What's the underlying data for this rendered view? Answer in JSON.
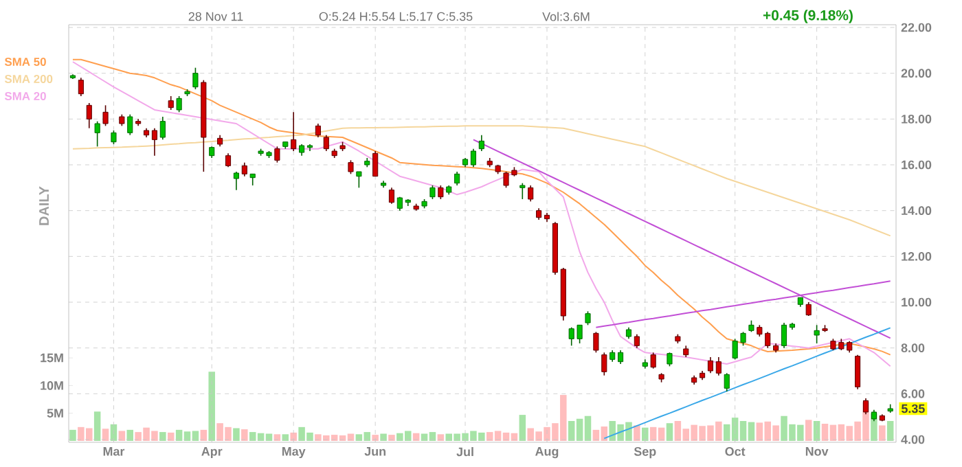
{
  "chart_data": {
    "type": "candlestick",
    "categories": [
      null,
      null,
      null,
      null,
      null,
      "Mar",
      null,
      null,
      null,
      null,
      null,
      null,
      null,
      null,
      null,
      null,
      null,
      "Apr",
      null,
      null,
      null,
      null,
      null,
      null,
      null,
      null,
      null,
      "May",
      null,
      null,
      null,
      null,
      null,
      null,
      null,
      null,
      null,
      "Jun",
      null,
      null,
      null,
      null,
      null,
      null,
      null,
      null,
      null,
      null,
      "Jul",
      null,
      null,
      null,
      null,
      null,
      null,
      null,
      null,
      null,
      "Aug",
      null,
      null,
      null,
      null,
      null,
      null,
      null,
      null,
      null,
      null,
      null,
      "Sep",
      null,
      null,
      null,
      null,
      null,
      null,
      null,
      null,
      null,
      null,
      "Oct",
      null,
      null,
      null,
      null,
      null,
      null,
      null,
      null,
      null,
      "Nov",
      null,
      null,
      null,
      null,
      null,
      null,
      null,
      null,
      null
    ],
    "ohlc": [
      [
        19.8,
        19.95,
        19.75,
        19.9
      ],
      [
        19.7,
        19.8,
        19.0,
        19.1
      ],
      [
        18.6,
        18.7,
        17.6,
        18.0
      ],
      [
        17.4,
        17.9,
        16.8,
        17.8
      ],
      [
        18.3,
        18.6,
        17.7,
        17.8
      ],
      [
        17.0,
        17.5,
        16.9,
        17.4
      ],
      [
        18.1,
        18.2,
        17.7,
        17.8
      ],
      [
        17.4,
        18.2,
        17.3,
        18.1
      ],
      [
        17.9,
        18.0,
        17.7,
        17.8
      ],
      [
        17.5,
        17.6,
        17.2,
        17.3
      ],
      [
        17.5,
        17.6,
        16.4,
        17.1
      ],
      [
        17.2,
        18.1,
        17.1,
        17.9
      ],
      [
        18.8,
        19.0,
        18.4,
        18.5
      ],
      [
        18.4,
        19.0,
        18.3,
        18.9
      ],
      [
        19.1,
        19.3,
        19.0,
        19.2
      ],
      [
        19.4,
        20.24,
        19.3,
        20.0
      ],
      [
        19.6,
        19.7,
        15.7,
        17.2
      ],
      [
        16.4,
        16.8,
        16.3,
        16.76
      ],
      [
        17.16,
        17.3,
        16.8,
        16.9
      ],
      [
        16.4,
        16.5,
        15.9,
        15.96
      ],
      [
        15.4,
        15.7,
        14.9,
        15.64
      ],
      [
        15.96,
        16.1,
        15.5,
        15.6
      ],
      [
        15.44,
        15.6,
        15.1,
        15.6
      ],
      [
        16.5,
        16.7,
        16.4,
        16.6
      ],
      [
        16.4,
        16.6,
        16.3,
        16.54
      ],
      [
        16.7,
        16.8,
        16.1,
        16.2
      ],
      [
        16.8,
        17.0,
        16.7,
        17.0
      ],
      [
        17.1,
        18.3,
        16.6,
        16.7
      ],
      [
        16.54,
        16.9,
        16.4,
        16.84
      ],
      [
        16.76,
        16.9,
        16.6,
        16.84
      ],
      [
        17.7,
        17.8,
        17.2,
        17.3
      ],
      [
        17.2,
        17.3,
        16.6,
        16.7
      ],
      [
        16.6,
        16.7,
        16.3,
        16.4
      ],
      [
        16.84,
        17.0,
        16.6,
        16.7
      ],
      [
        16.1,
        16.2,
        15.6,
        15.7
      ],
      [
        15.5,
        15.7,
        15.0,
        15.7
      ],
      [
        16.0,
        16.3,
        15.9,
        16.16
      ],
      [
        16.5,
        16.6,
        15.5,
        15.5
      ],
      [
        15.1,
        15.3,
        15.0,
        15.2
      ],
      [
        14.9,
        15.0,
        14.3,
        14.36
      ],
      [
        14.1,
        14.6,
        14.0,
        14.56
      ],
      [
        14.36,
        14.5,
        14.2,
        14.46
      ],
      [
        14.2,
        14.3,
        14.0,
        14.06
      ],
      [
        14.2,
        14.5,
        14.1,
        14.4
      ],
      [
        14.6,
        15.1,
        14.5,
        15.0
      ],
      [
        15.0,
        15.1,
        14.5,
        14.6
      ],
      [
        14.8,
        15.1,
        14.7,
        15.04
      ],
      [
        15.2,
        15.7,
        15.1,
        15.6
      ],
      [
        16.0,
        16.3,
        15.9,
        16.24
      ],
      [
        16.0,
        16.7,
        15.9,
        16.6
      ],
      [
        16.7,
        17.3,
        16.6,
        17.04
      ],
      [
        16.16,
        16.3,
        15.9,
        16.0
      ],
      [
        15.96,
        16.0,
        15.6,
        15.7
      ],
      [
        15.64,
        15.7,
        15.0,
        15.1
      ],
      [
        15.76,
        15.9,
        15.5,
        15.56
      ],
      [
        15.0,
        15.2,
        14.5,
        15.1
      ],
      [
        15.0,
        15.1,
        14.4,
        14.5
      ],
      [
        14.0,
        14.1,
        13.6,
        13.7
      ],
      [
        13.8,
        13.9,
        13.5,
        13.64
      ],
      [
        13.44,
        13.5,
        11.2,
        11.3
      ],
      [
        11.44,
        11.5,
        9.2,
        9.4
      ],
      [
        8.4,
        8.9,
        8.1,
        8.84
      ],
      [
        8.4,
        9.0,
        8.2,
        9.0
      ],
      [
        9.1,
        9.6,
        9.0,
        9.5
      ],
      [
        8.64,
        8.7,
        7.8,
        7.9
      ],
      [
        7.7,
        7.8,
        6.8,
        6.96
      ],
      [
        7.5,
        7.9,
        7.4,
        7.8
      ],
      [
        7.4,
        7.9,
        7.3,
        7.8
      ],
      [
        8.5,
        8.9,
        8.4,
        8.8
      ],
      [
        8.5,
        8.6,
        8.0,
        8.1
      ],
      [
        7.2,
        7.5,
        7.1,
        7.36
      ],
      [
        7.7,
        7.8,
        7.1,
        7.16
      ],
      [
        6.84,
        6.9,
        6.5,
        6.64
      ],
      [
        7.3,
        7.8,
        7.2,
        7.76
      ],
      [
        8.5,
        8.6,
        8.2,
        8.3
      ],
      [
        7.96,
        8.1,
        7.6,
        7.7
      ],
      [
        6.7,
        6.8,
        6.4,
        6.5
      ],
      [
        6.9,
        7.0,
        6.6,
        6.7
      ],
      [
        7.44,
        7.6,
        6.9,
        7.0
      ],
      [
        7.4,
        7.6,
        6.8,
        6.9
      ],
      [
        6.24,
        6.9,
        6.1,
        6.84
      ],
      [
        7.56,
        8.4,
        7.5,
        8.3
      ],
      [
        8.24,
        8.7,
        8.1,
        8.64
      ],
      [
        8.76,
        9.2,
        8.7,
        9.0
      ],
      [
        8.9,
        9.0,
        8.5,
        8.6
      ],
      [
        8.64,
        8.7,
        8.0,
        8.1
      ],
      [
        8.1,
        8.2,
        7.8,
        7.9
      ],
      [
        8.1,
        9.1,
        8.0,
        9.0
      ],
      [
        8.9,
        9.1,
        8.8,
        9.04
      ],
      [
        9.9,
        10.2,
        9.8,
        10.2
      ],
      [
        9.9,
        10.0,
        9.4,
        9.44
      ],
      [
        8.56,
        9.0,
        8.2,
        8.76
      ],
      [
        8.84,
        9.0,
        8.7,
        8.76
      ],
      [
        8.3,
        8.4,
        7.9,
        7.96
      ],
      [
        8.24,
        8.4,
        7.9,
        7.96
      ],
      [
        8.24,
        8.3,
        7.8,
        7.9
      ],
      [
        7.64,
        7.7,
        6.2,
        6.3
      ],
      [
        5.7,
        5.8,
        5.1,
        5.2
      ],
      [
        4.9,
        5.3,
        4.8,
        5.2
      ],
      [
        5.04,
        5.1,
        4.8,
        4.84
      ],
      [
        5.24,
        5.54,
        5.17,
        5.35
      ]
    ],
    "series": [
      {
        "name": "SMA 50",
        "type": "line",
        "color": "#ff9f4f",
        "values": [
          20.6,
          20.6,
          20.5,
          20.4,
          20.3,
          20.2,
          20.1,
          20.0,
          19.95,
          19.9,
          19.8,
          19.65,
          19.5,
          19.4,
          19.25,
          19.1,
          18.95,
          18.8,
          18.6,
          18.45,
          18.3,
          18.15,
          18.0,
          17.85,
          17.65,
          17.5,
          17.45,
          17.4,
          17.35,
          17.3,
          17.26,
          17.24,
          17.22,
          17.2,
          17.05,
          16.9,
          16.75,
          16.6,
          16.45,
          16.3,
          16.1,
          16.07,
          16.04,
          16.01,
          15.98,
          15.96,
          15.94,
          15.92,
          15.9,
          15.87,
          15.84,
          15.8,
          15.75,
          15.7,
          15.65,
          15.6,
          15.5,
          15.35,
          15.2,
          15.0,
          14.8,
          14.55,
          14.3,
          14.0,
          13.7,
          13.4,
          13.05,
          12.7,
          12.35,
          12.0,
          11.6,
          11.3,
          10.95,
          10.65,
          10.3,
          10.0,
          9.7,
          9.35,
          9.05,
          8.7,
          8.4,
          8.3,
          8.2,
          8.1,
          7.95,
          7.84,
          7.86,
          7.88,
          7.9,
          7.93,
          7.96,
          8.0,
          8.05,
          8.1,
          8.15,
          8.2,
          8.12,
          8.04,
          7.96,
          7.85,
          7.7
        ]
      },
      {
        "name": "SMA 200",
        "type": "line",
        "color": "#f5d69c",
        "values": [
          16.7,
          16.71,
          16.72,
          16.74,
          16.75,
          16.76,
          16.77,
          16.79,
          16.8,
          16.82,
          16.84,
          16.87,
          16.9,
          16.92,
          16.95,
          16.97,
          17.0,
          17.02,
          17.05,
          17.07,
          17.1,
          17.13,
          17.15,
          17.18,
          17.2,
          17.23,
          17.25,
          17.28,
          17.3,
          17.36,
          17.42,
          17.48,
          17.54,
          17.6,
          17.61,
          17.61,
          17.62,
          17.62,
          17.63,
          17.63,
          17.64,
          17.65,
          17.66,
          17.66,
          17.67,
          17.68,
          17.69,
          17.69,
          17.7,
          17.7,
          17.7,
          17.7,
          17.7,
          17.7,
          17.7,
          17.7,
          17.68,
          17.66,
          17.64,
          17.62,
          17.6,
          17.52,
          17.44,
          17.36,
          17.28,
          17.2,
          17.12,
          17.04,
          16.96,
          16.88,
          16.8,
          16.66,
          16.52,
          16.38,
          16.24,
          16.1,
          15.96,
          15.82,
          15.68,
          15.54,
          15.4,
          15.28,
          15.16,
          15.04,
          14.92,
          14.8,
          14.68,
          14.56,
          14.44,
          14.32,
          14.2,
          14.08,
          13.96,
          13.84,
          13.72,
          13.6,
          13.46,
          13.32,
          13.18,
          13.04,
          12.9
        ]
      },
      {
        "name": "SMA 20",
        "type": "line",
        "color": "#f2a8ea",
        "values": [
          20.5,
          20.28,
          20.06,
          19.84,
          19.62,
          19.4,
          19.2,
          19.0,
          18.8,
          18.6,
          18.4,
          18.34,
          18.28,
          18.22,
          18.16,
          18.1,
          18.04,
          17.98,
          17.92,
          17.86,
          17.8,
          17.58,
          17.36,
          17.14,
          16.92,
          16.7,
          16.7,
          16.7,
          16.7,
          16.7,
          16.7,
          16.8,
          16.9,
          17.0,
          16.8,
          16.6,
          16.38,
          16.16,
          15.94,
          15.72,
          15.5,
          15.4,
          15.3,
          15.2,
          15.1,
          15.0,
          14.85,
          14.7,
          14.8,
          14.92,
          15.04,
          15.2,
          15.35,
          15.5,
          15.65,
          15.8,
          15.75,
          15.7,
          15.3,
          14.95,
          14.6,
          13.4,
          12.2,
          11.3,
          10.6,
          10.0,
          9.2,
          8.5,
          8.25,
          8.0,
          7.8,
          7.76,
          7.72,
          7.68,
          7.64,
          7.6,
          7.54,
          7.48,
          7.42,
          7.36,
          7.3,
          7.4,
          7.5,
          7.6,
          7.9,
          8.2,
          8.16,
          8.12,
          8.08,
          8.04,
          8.0,
          8.08,
          8.16,
          8.24,
          8.32,
          8.4,
          8.2,
          8.0,
          7.8,
          7.5,
          7.2
        ]
      },
      {
        "type": "line",
        "color": "#c24fd6",
        "values": [
          null,
          null,
          null,
          null,
          null,
          null,
          null,
          null,
          null,
          null,
          null,
          null,
          null,
          null,
          null,
          null,
          null,
          null,
          null,
          null,
          null,
          null,
          null,
          null,
          null,
          null,
          null,
          null,
          null,
          null,
          null,
          null,
          null,
          null,
          null,
          null,
          null,
          null,
          null,
          null,
          null,
          null,
          null,
          null,
          null,
          null,
          null,
          null,
          null,
          17.1,
          16.93,
          16.76,
          16.59,
          16.42,
          16.25,
          16.08,
          15.91,
          15.74,
          15.57,
          15.4,
          15.23,
          15.06,
          14.89,
          14.72,
          14.55,
          14.38,
          14.21,
          14.04,
          13.87,
          13.7,
          13.53,
          13.36,
          13.19,
          13.02,
          12.85,
          12.68,
          12.51,
          12.34,
          12.17,
          12.0,
          11.83,
          11.66,
          11.49,
          11.32,
          11.15,
          10.98,
          10.81,
          10.64,
          10.47,
          10.3,
          10.13,
          9.96,
          9.79,
          9.62,
          9.45,
          9.28,
          9.11,
          8.94,
          8.77,
          8.6,
          8.43
        ]
      },
      {
        "type": "line",
        "color": "#c24fd6",
        "values": [
          null,
          null,
          null,
          null,
          null,
          null,
          null,
          null,
          null,
          null,
          null,
          null,
          null,
          null,
          null,
          null,
          null,
          null,
          null,
          null,
          null,
          null,
          null,
          null,
          null,
          null,
          null,
          null,
          null,
          null,
          null,
          null,
          null,
          null,
          null,
          null,
          null,
          null,
          null,
          null,
          null,
          null,
          null,
          null,
          null,
          null,
          null,
          null,
          null,
          null,
          null,
          null,
          null,
          null,
          null,
          null,
          null,
          null,
          null,
          null,
          null,
          null,
          null,
          null,
          8.9,
          8.96,
          9.01,
          9.07,
          9.12,
          9.18,
          9.24,
          9.29,
          9.35,
          9.4,
          9.46,
          9.52,
          9.57,
          9.63,
          9.68,
          9.74,
          9.8,
          9.85,
          9.91,
          9.96,
          10.02,
          10.08,
          10.13,
          10.19,
          10.24,
          10.3,
          10.36,
          10.41,
          10.47,
          10.52,
          10.58,
          10.64,
          10.69,
          10.75,
          10.8,
          10.86,
          10.92
        ]
      },
      {
        "type": "line",
        "color": "#3aa8e8",
        "values": [
          null,
          null,
          null,
          null,
          null,
          null,
          null,
          null,
          null,
          null,
          null,
          null,
          null,
          null,
          null,
          null,
          null,
          null,
          null,
          null,
          null,
          null,
          null,
          null,
          null,
          null,
          null,
          null,
          null,
          null,
          null,
          null,
          null,
          null,
          null,
          null,
          null,
          null,
          null,
          null,
          null,
          null,
          null,
          null,
          null,
          null,
          null,
          null,
          null,
          null,
          null,
          null,
          null,
          null,
          null,
          null,
          null,
          null,
          null,
          null,
          null,
          null,
          null,
          null,
          null,
          4.05,
          4.19,
          4.33,
          4.46,
          4.6,
          4.74,
          4.88,
          5.02,
          5.15,
          5.29,
          5.43,
          5.57,
          5.71,
          5.84,
          5.98,
          6.12,
          6.26,
          6.4,
          6.53,
          6.67,
          6.81,
          6.95,
          7.09,
          7.22,
          7.36,
          7.5,
          7.64,
          7.78,
          7.91,
          8.05,
          8.19,
          8.33,
          8.47,
          8.6,
          8.74,
          8.88
        ]
      },
      {
        "type": "bar",
        "axis": "y2",
        "values": [
          2.0,
          2.5,
          2.3,
          5.3,
          2.2,
          3.0,
          1.8,
          2.0,
          1.6,
          2.4,
          1.8,
          1.6,
          1.5,
          2.0,
          1.7,
          1.8,
          2.0,
          12.5,
          3.2,
          2.5,
          2.3,
          2.1,
          1.6,
          1.4,
          1.3,
          1.2,
          1.2,
          1.5,
          2.5,
          1.5,
          1.2,
          1.0,
          1.1,
          1.0,
          1.3,
          1.2,
          1.6,
          1.1,
          1.3,
          1.1,
          1.4,
          1.8,
          1.4,
          1.3,
          1.6,
          1.2,
          1.3,
          1.3,
          1.4,
          1.8,
          1.5,
          1.6,
          1.8,
          1.5,
          1.4,
          4.7,
          2.3,
          1.7,
          2.5,
          3.2,
          8.3,
          3.6,
          4.0,
          4.5,
          2.0,
          2.6,
          3.6,
          3.0,
          3.4,
          2.8,
          2.4,
          2.5,
          2.4,
          3.2,
          3.6,
          2.2,
          2.9,
          2.7,
          2.8,
          3.5,
          3.0,
          4.2,
          3.6,
          3.4,
          3.3,
          3.5,
          2.8,
          4.5,
          3.0,
          2.9,
          3.8,
          3.6,
          3.1,
          2.9,
          3.0,
          2.7,
          3.5,
          7.0,
          5.0,
          2.8,
          3.6
        ],
        "colors": [
          "#a6e3a6",
          "#ffbdbd",
          "#ffbdbd",
          "#a6e3a6",
          "#ffbdbd",
          "#a6e3a6",
          "#ffbdbd",
          "#a6e3a6",
          "#ffbdbd",
          "#ffbdbd",
          "#ffbdbd",
          "#a6e3a6",
          "#ffbdbd",
          "#a6e3a6",
          "#a6e3a6",
          "#a6e3a6",
          "#ffbdbd",
          "#a6e3a6",
          "#ffbdbd",
          "#ffbdbd",
          "#a6e3a6",
          "#ffbdbd",
          "#a6e3a6",
          "#a6e3a6",
          "#a6e3a6",
          "#ffbdbd",
          "#a6e3a6",
          "#ffbdbd",
          "#a6e3a6",
          "#a6e3a6",
          "#ffbdbd",
          "#ffbdbd",
          "#ffbdbd",
          "#ffbdbd",
          "#ffbdbd",
          "#a6e3a6",
          "#a6e3a6",
          "#ffbdbd",
          "#a6e3a6",
          "#ffbdbd",
          "#a6e3a6",
          "#a6e3a6",
          "#ffbdbd",
          "#a6e3a6",
          "#a6e3a6",
          "#ffbdbd",
          "#a6e3a6",
          "#a6e3a6",
          "#a6e3a6",
          "#a6e3a6",
          "#a6e3a6",
          "#ffbdbd",
          "#ffbdbd",
          "#ffbdbd",
          "#ffbdbd",
          "#a6e3a6",
          "#ffbdbd",
          "#ffbdbd",
          "#ffbdbd",
          "#ffbdbd",
          "#ffbdbd",
          "#a6e3a6",
          "#a6e3a6",
          "#a6e3a6",
          "#ffbdbd",
          "#ffbdbd",
          "#a6e3a6",
          "#a6e3a6",
          "#a6e3a6",
          "#ffbdbd",
          "#a6e3a6",
          "#ffbdbd",
          "#ffbdbd",
          "#a6e3a6",
          "#ffbdbd",
          "#ffbdbd",
          "#ffbdbd",
          "#ffbdbd",
          "#ffbdbd",
          "#ffbdbd",
          "#a6e3a6",
          "#a6e3a6",
          "#a6e3a6",
          "#a6e3a6",
          "#ffbdbd",
          "#ffbdbd",
          "#ffbdbd",
          "#a6e3a6",
          "#a6e3a6",
          "#a6e3a6",
          "#ffbdbd",
          "#a6e3a6",
          "#ffbdbd",
          "#ffbdbd",
          "#ffbdbd",
          "#ffbdbd",
          "#ffbdbd",
          "#ffbdbd",
          "#a6e3a6",
          "#ffbdbd",
          "#a6e3a6"
        ]
      }
    ],
    "ylim": [
      3.88,
      22.12
    ],
    "yticks": [
      {
        "value": 4,
        "label": "4.00"
      },
      {
        "value": 6,
        "label": "6.00"
      },
      {
        "value": 8,
        "label": "8.00"
      },
      {
        "value": 10,
        "label": "10.00"
      },
      {
        "value": 12,
        "label": "12.00"
      },
      {
        "value": 14,
        "label": "14.00"
      },
      {
        "value": 16,
        "label": "16.00"
      },
      {
        "value": 18,
        "label": "18.00"
      },
      {
        "value": 20,
        "label": "20.00"
      },
      {
        "value": 22,
        "label": "22.00"
      }
    ],
    "y2lim": [
      -0.25,
      75.2
    ],
    "y2ticks": [
      {
        "value": 5,
        "label": "5M"
      },
      {
        "value": 10,
        "label": "10M"
      },
      {
        "value": 15,
        "label": "15M"
      }
    ],
    "grid": true,
    "legend": "top left",
    "annotations": [
      "28 Nov 11",
      "O:5.24 H:5.54 L:5.17 C:5.35",
      "Vol:3.6M",
      "+0.45 (9.18%)",
      "DAILY",
      {
        "text": "5.35",
        "y": 5.35
      }
    ]
  }
}
